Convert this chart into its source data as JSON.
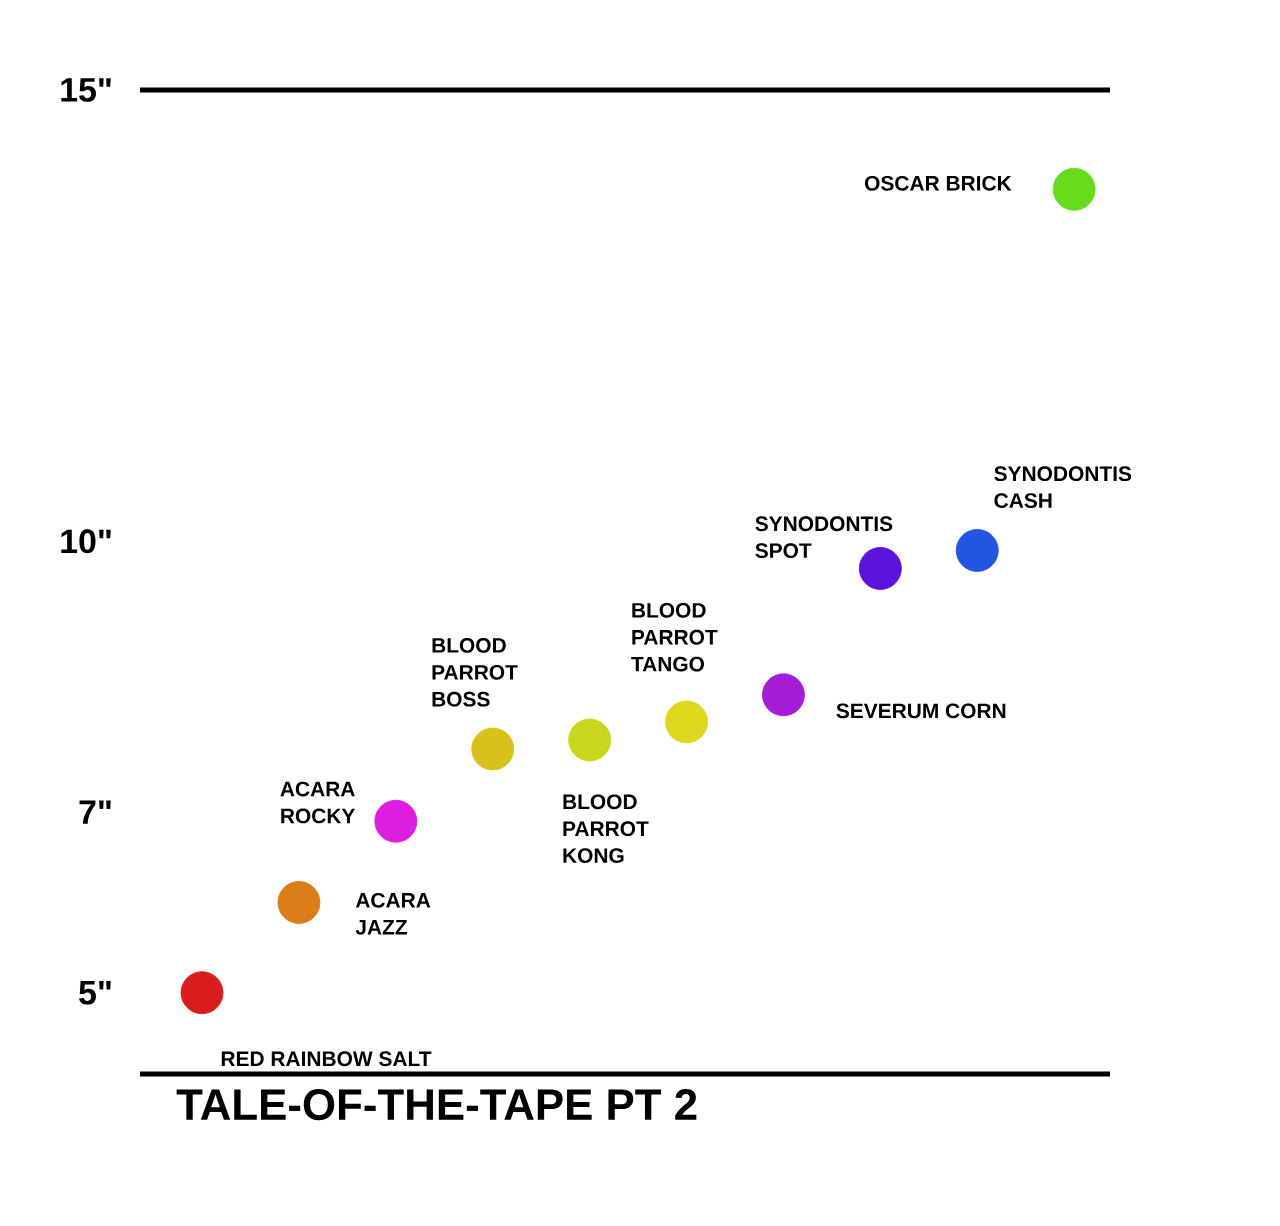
{
  "chart_data": {
    "type": "scatter",
    "title": "TALE-OF-THE-TAPE PT 2",
    "categories": [
      null,
      null,
      null,
      null,
      null,
      null,
      null,
      null,
      null,
      null
    ],
    "series": [
      {
        "name": "RED RAINBOW SALT",
        "color": "#d91c1c",
        "values": [
          5.0,
          null,
          null,
          null,
          null,
          null,
          null,
          null,
          null,
          null
        ]
      },
      {
        "name": "ACARA JAZZ",
        "color": "#dc7d1a",
        "values": [
          null,
          6.0,
          null,
          null,
          null,
          null,
          null,
          null,
          null,
          null
        ]
      },
      {
        "name": "ACARA ROCKY",
        "color": "#dc1ee0",
        "values": [
          null,
          null,
          6.9,
          null,
          null,
          null,
          null,
          null,
          null,
          null
        ]
      },
      {
        "name": "BLOOD PARROT BOSS",
        "color": "#d8c21a",
        "values": [
          null,
          null,
          null,
          7.7,
          null,
          null,
          null,
          null,
          null,
          null
        ]
      },
      {
        "name": "BLOOD PARROT KONG",
        "color": "#c8d61c",
        "values": [
          null,
          null,
          null,
          null,
          7.8,
          null,
          null,
          null,
          null,
          null
        ]
      },
      {
        "name": "BLOOD PARROT TANGO",
        "color": "#dcd81e",
        "values": [
          null,
          null,
          null,
          null,
          null,
          8.0,
          null,
          null,
          null,
          null
        ]
      },
      {
        "name": "SEVERUM CORN",
        "color": "#a41ed8",
        "values": [
          null,
          null,
          null,
          null,
          null,
          null,
          8.3,
          null,
          null,
          null
        ]
      },
      {
        "name": "SYNODONTIS SPOT",
        "color": "#5a14dc",
        "values": [
          null,
          null,
          null,
          null,
          null,
          null,
          null,
          9.7,
          null,
          null
        ]
      },
      {
        "name": "SYNODONTIS CASH",
        "color": "#2255e0",
        "values": [
          null,
          null,
          null,
          null,
          null,
          null,
          null,
          null,
          9.9,
          null
        ]
      },
      {
        "name": "OSCAR BRICK",
        "color": "#66dc1a",
        "values": [
          null,
          null,
          null,
          null,
          null,
          null,
          null,
          null,
          null,
          13.9
        ]
      }
    ],
    "marker": "circle",
    "ylim": [
      4.1,
      15
    ],
    "yticks": [
      {
        "value": 5,
        "label": "5\""
      },
      {
        "value": 7,
        "label": "7\""
      },
      {
        "value": 10,
        "label": "10\""
      },
      {
        "value": 15,
        "label": "15\""
      }
    ],
    "tick_labels": "y",
    "ref_lines": [
      {
        "axis": "y",
        "value": 15,
        "color": "#000000"
      }
    ]
  }
}
